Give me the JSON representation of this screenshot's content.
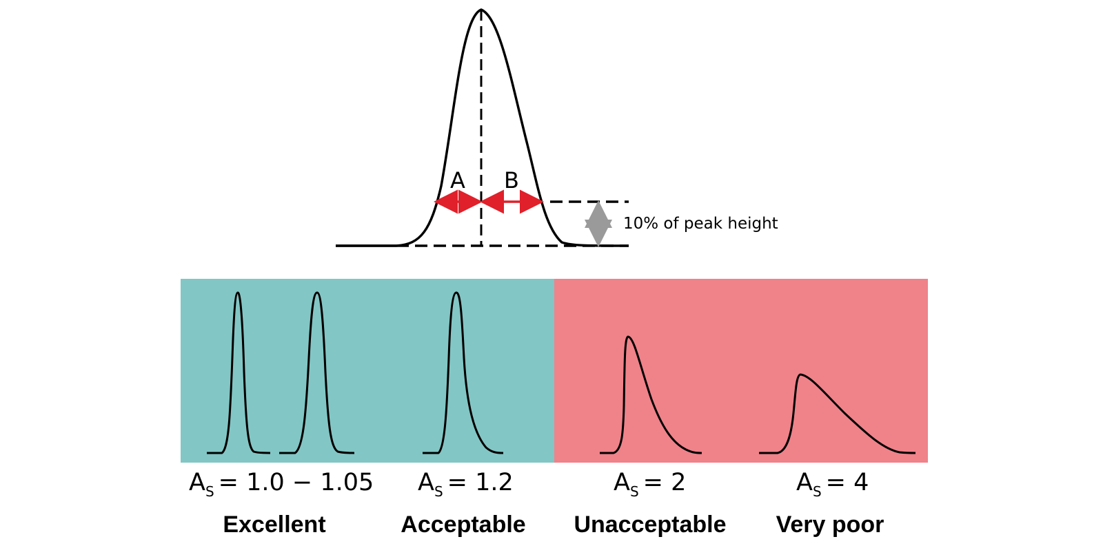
{
  "figure": {
    "label_a": "A",
    "label_b": "B",
    "threshold_label": "10% of peak height"
  },
  "classes": [
    {
      "symbol": "A",
      "subscript": "S",
      "value": "= 1.0 − 1.05",
      "verdict": "Excellent"
    },
    {
      "symbol": "A",
      "subscript": "S",
      "value": "= 1.2",
      "verdict": "Acceptable"
    },
    {
      "symbol": "A",
      "subscript": "S",
      "value": "= 2",
      "verdict": "Unacceptable"
    },
    {
      "symbol": "A",
      "subscript": "S",
      "value": "= 4",
      "verdict": "Very poor"
    }
  ],
  "colors": {
    "good_panel": "#82c6c5",
    "bad_panel": "#f0828a",
    "arrow_red": "#e0202a",
    "arrow_gray": "#9a9a9a",
    "ink": "#000000"
  }
}
